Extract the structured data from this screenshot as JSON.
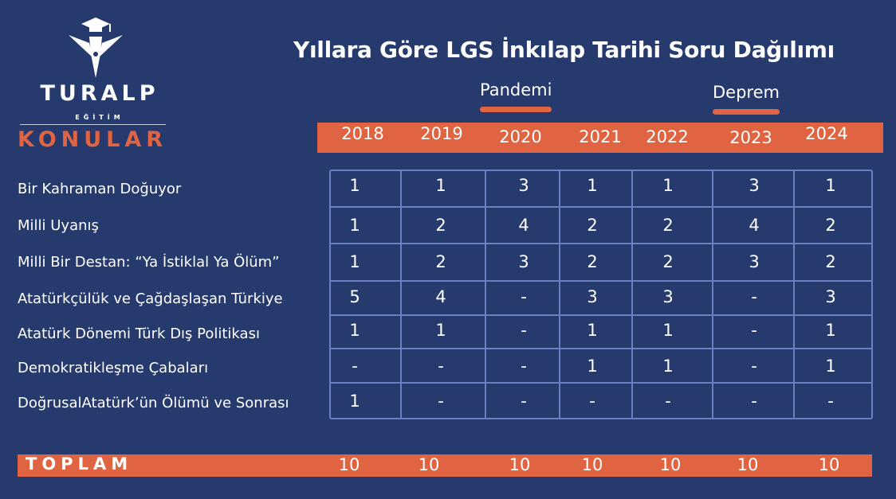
{
  "title": "Yıllara Göre LGS İnkılap Tarihi Soru Dağılımı",
  "logo": {
    "brand": "TURALP",
    "subtitle": "EĞİTİM"
  },
  "section_label": "KONULAR",
  "notes": {
    "pandemic": "Pandemi",
    "earthquake": "Deprem"
  },
  "years": [
    "2018",
    "2019",
    "2020",
    "2021",
    "2022",
    "2023",
    "2024"
  ],
  "topics": [
    {
      "name": "Bir Kahraman Doğuyor",
      "values": [
        "1",
        "1",
        "3",
        "1",
        "1",
        "3",
        "1"
      ]
    },
    {
      "name": "Milli Uyanış",
      "values": [
        "1",
        "2",
        "4",
        "2",
        "2",
        "4",
        "2"
      ]
    },
    {
      "name": "Milli Bir Destan: “Ya İstiklal Ya Ölüm”",
      "values": [
        "1",
        "2",
        "3",
        "2",
        "2",
        "3",
        "2"
      ]
    },
    {
      "name": "Atatürkçülük ve Çağdaşlaşan Türkiye",
      "values": [
        "5",
        "4",
        "-",
        "3",
        "3",
        "-",
        "3"
      ]
    },
    {
      "name": "Atatürk Dönemi Türk Dış Politikası",
      "values": [
        "1",
        "1",
        "-",
        "1",
        "1",
        "-",
        "1"
      ]
    },
    {
      "name": "Demokratikleşme Çabaları",
      "values": [
        "-",
        "-",
        "-",
        "1",
        "1",
        "-",
        "1"
      ]
    },
    {
      "name": "DoğrusalAtatürk’ün Ölümü ve Sonrası",
      "values": [
        "1",
        "-",
        "-",
        "-",
        "-",
        "-",
        "-"
      ]
    }
  ],
  "total": {
    "label": "TOPLAM",
    "values": [
      "10",
      "10",
      "10",
      "10",
      "10",
      "10",
      "10"
    ]
  },
  "colors": {
    "background": "#273a6e",
    "accent": "#e06442",
    "grid": "#6b7fc2"
  }
}
